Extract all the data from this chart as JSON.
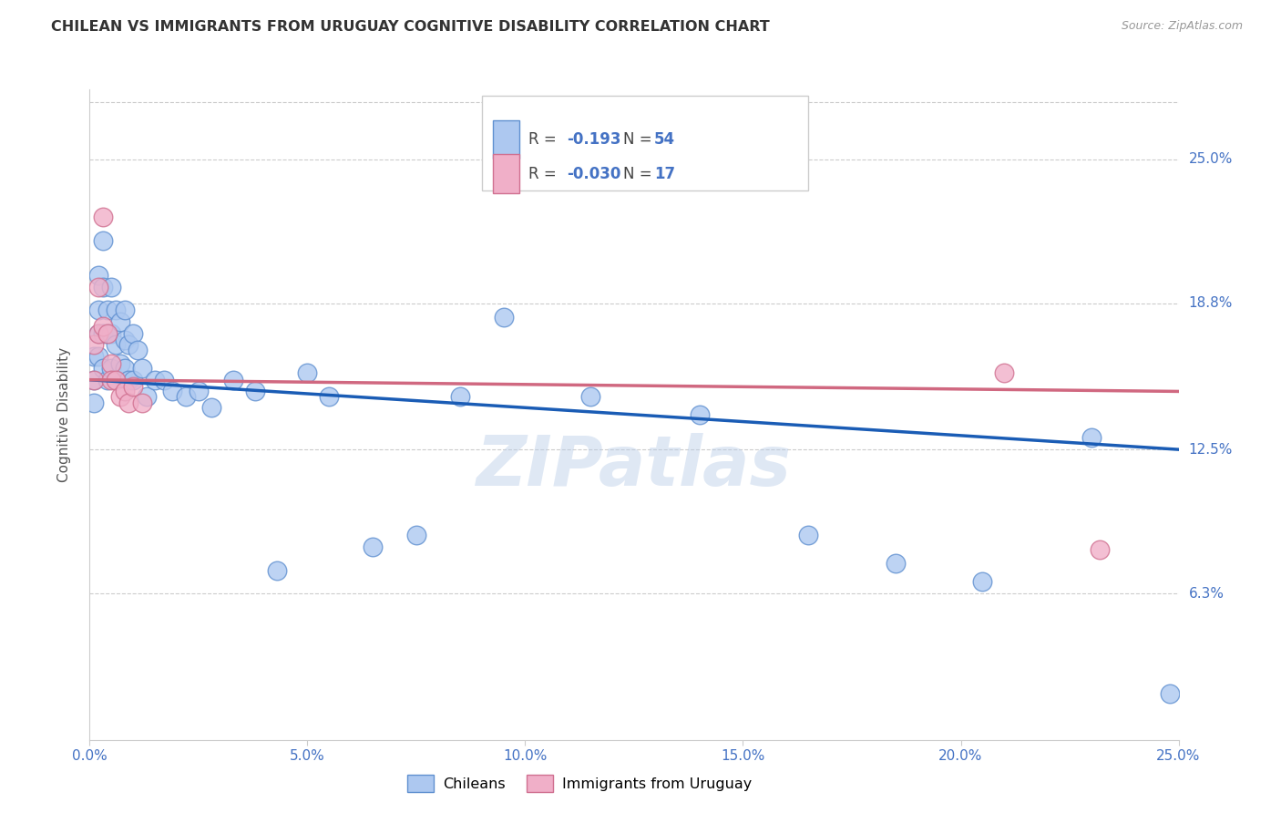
{
  "title": "CHILEAN VS IMMIGRANTS FROM URUGUAY COGNITIVE DISABILITY CORRELATION CHART",
  "source": "Source: ZipAtlas.com",
  "ylabel": "Cognitive Disability",
  "xlim": [
    0.0,
    0.25
  ],
  "ylim": [
    0.0,
    0.28
  ],
  "ytick_positions": [
    0.063,
    0.125,
    0.188,
    0.25
  ],
  "ytick_labels": [
    "6.3%",
    "12.5%",
    "18.8%",
    "25.0%"
  ],
  "xtick_positions": [
    0.0,
    0.05,
    0.1,
    0.15,
    0.2,
    0.25
  ],
  "xtick_labels": [
    "0.0%",
    "5.0%",
    "10.0%",
    "15.0%",
    "20.0%",
    "25.0%"
  ],
  "blue_R": "-0.193",
  "blue_N": "54",
  "pink_R": "-0.030",
  "pink_N": "17",
  "blue_color": "#adc8f0",
  "pink_color": "#f0afc8",
  "blue_edge_color": "#6090d0",
  "pink_edge_color": "#d07090",
  "blue_line_color": "#1a5cb5",
  "pink_line_color": "#d06880",
  "legend_label_blue": "Chileans",
  "legend_label_pink": "Immigrants from Uruguay",
  "blue_x": [
    0.001,
    0.001,
    0.001,
    0.002,
    0.002,
    0.002,
    0.002,
    0.003,
    0.003,
    0.003,
    0.003,
    0.004,
    0.004,
    0.004,
    0.005,
    0.005,
    0.005,
    0.006,
    0.006,
    0.006,
    0.007,
    0.007,
    0.008,
    0.008,
    0.008,
    0.009,
    0.009,
    0.01,
    0.01,
    0.011,
    0.012,
    0.013,
    0.015,
    0.017,
    0.019,
    0.022,
    0.025,
    0.028,
    0.033,
    0.038,
    0.043,
    0.05,
    0.055,
    0.065,
    0.075,
    0.085,
    0.095,
    0.115,
    0.14,
    0.165,
    0.185,
    0.205,
    0.23,
    0.248
  ],
  "blue_y": [
    0.165,
    0.155,
    0.145,
    0.2,
    0.185,
    0.175,
    0.165,
    0.215,
    0.195,
    0.175,
    0.16,
    0.185,
    0.175,
    0.155,
    0.195,
    0.175,
    0.16,
    0.185,
    0.17,
    0.155,
    0.18,
    0.162,
    0.185,
    0.172,
    0.16,
    0.17,
    0.155,
    0.175,
    0.155,
    0.168,
    0.16,
    0.148,
    0.155,
    0.155,
    0.15,
    0.148,
    0.15,
    0.143,
    0.155,
    0.15,
    0.073,
    0.158,
    0.148,
    0.083,
    0.088,
    0.148,
    0.182,
    0.148,
    0.14,
    0.088,
    0.076,
    0.068,
    0.13,
    0.02
  ],
  "pink_x": [
    0.001,
    0.001,
    0.002,
    0.002,
    0.003,
    0.003,
    0.004,
    0.005,
    0.005,
    0.006,
    0.007,
    0.008,
    0.009,
    0.01,
    0.012,
    0.21,
    0.232
  ],
  "pink_y": [
    0.155,
    0.17,
    0.195,
    0.175,
    0.225,
    0.178,
    0.175,
    0.162,
    0.155,
    0.155,
    0.148,
    0.15,
    0.145,
    0.152,
    0.145,
    0.158,
    0.082
  ],
  "blue_line_start_y": 0.155,
  "blue_line_end_y": 0.125,
  "pink_line_start_y": 0.155,
  "pink_line_end_y": 0.15,
  "watermark": "ZIPatlas",
  "background_color": "#ffffff",
  "grid_color": "#cccccc"
}
